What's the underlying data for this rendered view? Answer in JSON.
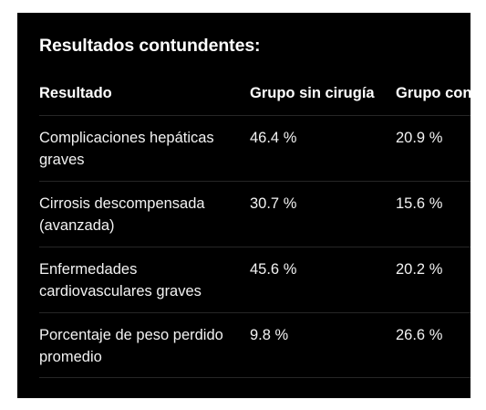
{
  "title": "Resultados contundentes:",
  "table": {
    "headers": [
      "Resultado",
      "Grupo sin cirugía",
      "Grupo con cirugía bariátrica"
    ],
    "rows": [
      {
        "outcome": "Complicaciones hepáticas graves",
        "no_surgery": "46.4 %",
        "surgery": "20.9 %"
      },
      {
        "outcome": "Cirrosis descompensada (avanzada)",
        "no_surgery": "30.7 %",
        "surgery": "15.6 %"
      },
      {
        "outcome": "Enfermedades cardiovasculares graves",
        "no_surgery": "45.6 %",
        "surgery": "20.2 %"
      },
      {
        "outcome": "Porcentaje de peso perdido promedio",
        "no_surgery": "9.8 %",
        "surgery": "26.6 %"
      }
    ]
  }
}
